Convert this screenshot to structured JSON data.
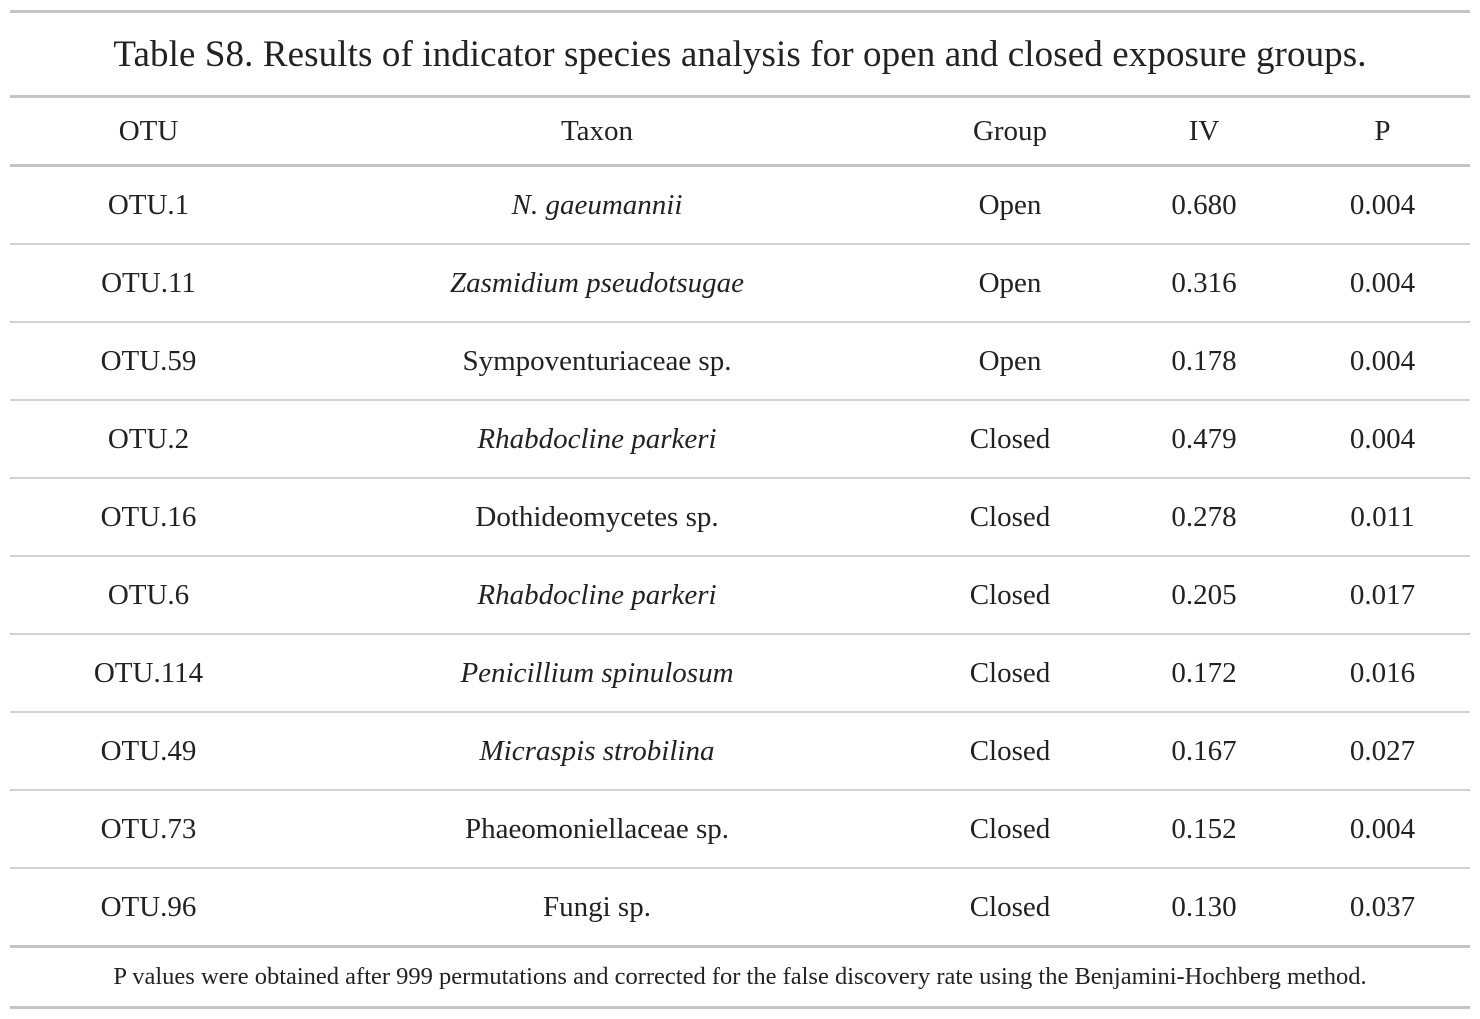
{
  "caption": "Table S8. Results of indicator species analysis for open and closed exposure groups.",
  "columns": [
    "OTU",
    "Taxon",
    "Group",
    "IV",
    "P"
  ],
  "rows": [
    {
      "otu": "OTU.1",
      "taxon": "N. gaeumannii",
      "italic": true,
      "group": "Open",
      "iv": "0.680",
      "p": "0.004"
    },
    {
      "otu": "OTU.11",
      "taxon": "Zasmidium pseudotsugae",
      "italic": true,
      "group": "Open",
      "iv": "0.316",
      "p": "0.004"
    },
    {
      "otu": "OTU.59",
      "taxon": "Sympoventuriaceae sp.",
      "italic": false,
      "group": "Open",
      "iv": "0.178",
      "p": "0.004"
    },
    {
      "otu": "OTU.2",
      "taxon": "Rhabdocline parkeri",
      "italic": true,
      "group": "Closed",
      "iv": "0.479",
      "p": "0.004"
    },
    {
      "otu": "OTU.16",
      "taxon": "Dothideomycetes sp.",
      "italic": false,
      "group": "Closed",
      "iv": "0.278",
      "p": "0.011"
    },
    {
      "otu": "OTU.6",
      "taxon": "Rhabdocline parkeri",
      "italic": true,
      "group": "Closed",
      "iv": "0.205",
      "p": "0.017"
    },
    {
      "otu": "OTU.114",
      "taxon": "Penicillium spinulosum",
      "italic": true,
      "group": "Closed",
      "iv": "0.172",
      "p": "0.016"
    },
    {
      "otu": "OTU.49",
      "taxon": "Micraspis strobilina",
      "italic": true,
      "group": "Closed",
      "iv": "0.167",
      "p": "0.027"
    },
    {
      "otu": "OTU.73",
      "taxon": "Phaeomoniellaceae sp.",
      "italic": false,
      "group": "Closed",
      "iv": "0.152",
      "p": "0.004"
    },
    {
      "otu": "OTU.96",
      "taxon": "Fungi sp.",
      "italic": false,
      "group": "Closed",
      "iv": "0.130",
      "p": "0.037"
    }
  ],
  "footnote": "P values were obtained after 999 permutations and corrected for the false discovery rate using the Benjamini-Hochberg method."
}
